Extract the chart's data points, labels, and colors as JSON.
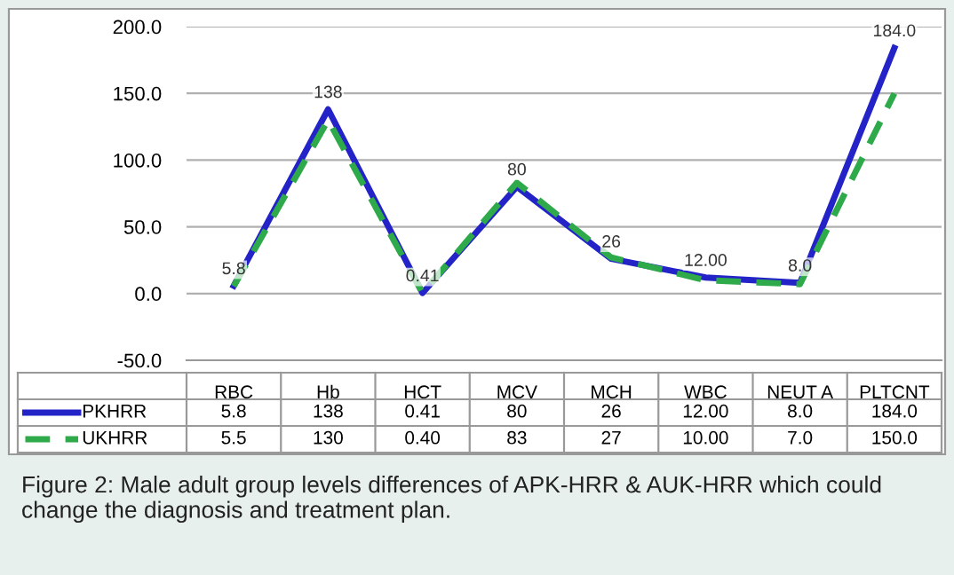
{
  "chart_data": {
    "type": "line",
    "categories": [
      "RBC",
      "Hb",
      "HCT",
      "MCV",
      "MCH",
      "WBC",
      "NEUT A",
      "PLTCNT"
    ],
    "series": [
      {
        "name": "PKHRR",
        "color": "#2323c8",
        "line_style": "solid",
        "values": [
          5.8,
          138,
          0.41,
          80,
          26,
          12.0,
          8.0,
          184.0
        ],
        "value_labels": [
          "5.8",
          "138",
          "0.41",
          "80",
          "26",
          "12.00",
          "8.0",
          "184.0"
        ]
      },
      {
        "name": "UKHRR",
        "color": "#2eaa4a",
        "line_style": "dashed",
        "values": [
          5.5,
          130,
          0.4,
          83,
          27,
          10.0,
          7.0,
          150.0
        ],
        "value_labels": [
          "5.5",
          "130",
          "0.40",
          "83",
          "27",
          "10.00",
          "7.0",
          "150.0"
        ]
      }
    ],
    "ylim": [
      -50,
      200
    ],
    "yticks": [
      {
        "value": -50,
        "label": "-50.0"
      },
      {
        "value": 0,
        "label": "0.0"
      },
      {
        "value": 50,
        "label": "50.0"
      },
      {
        "value": 100,
        "label": "100.0"
      },
      {
        "value": 150,
        "label": "150.0"
      },
      {
        "value": 200,
        "label": "200.0"
      }
    ],
    "grid": "y",
    "marker": "none",
    "legend": "bottom",
    "annotations": [
      "Figure 2: Male adult group levels differences of APK-HRR & AUK-HRR which could change the diagnosis and treatment plan."
    ]
  }
}
